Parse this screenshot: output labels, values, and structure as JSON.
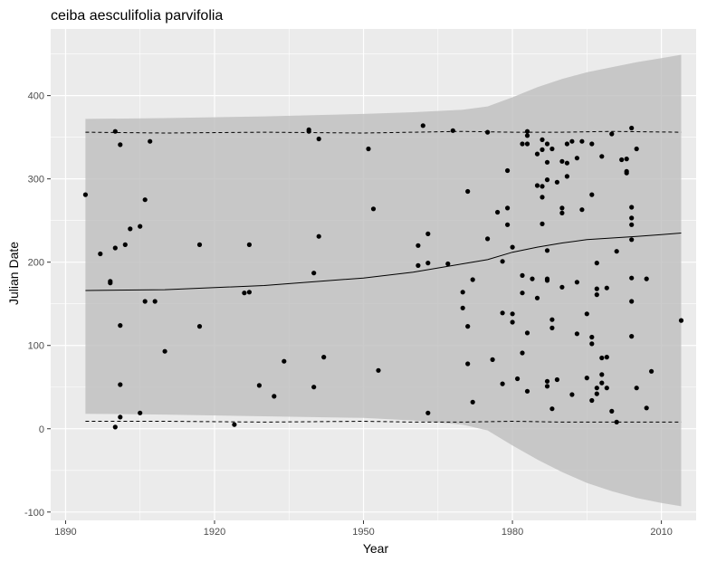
{
  "chart_data": {
    "type": "scatter",
    "title": "ceiba aesculifolia parvifolia",
    "xlabel": "Year",
    "ylabel": "Julian Date",
    "xlim": [
      1887,
      2017
    ],
    "ylim": [
      -110,
      480
    ],
    "xticks": [
      1890,
      1920,
      1950,
      1980,
      2010
    ],
    "yticks": [
      -100,
      0,
      100,
      200,
      300,
      400
    ],
    "grid": true,
    "colors": {
      "panel": "#ebebeb",
      "grid_major": "#ffffff",
      "ribbon": "#bebebe",
      "points": "#000000",
      "lines": "#000000"
    },
    "band": {
      "x": [
        1894,
        1910,
        1930,
        1950,
        1960,
        1970,
        1975,
        1980,
        1985,
        1990,
        1995,
        2000,
        2005,
        2010,
        2014
      ],
      "upper": [
        372,
        373,
        375,
        378,
        380,
        383,
        387,
        398,
        410,
        420,
        428,
        434,
        440,
        445,
        449
      ],
      "lower": [
        18,
        17,
        15,
        13,
        10,
        5,
        -2,
        -20,
        -37,
        -52,
        -65,
        -75,
        -83,
        -89,
        -93
      ]
    },
    "fit": {
      "x": [
        1894,
        1910,
        1930,
        1950,
        1960,
        1970,
        1975,
        1980,
        1985,
        1990,
        1995,
        2000,
        2005,
        2010,
        2014
      ],
      "y": [
        166,
        167,
        172,
        181,
        188,
        198,
        203,
        212,
        218,
        223,
        227,
        229,
        231,
        233,
        235
      ]
    },
    "upper_dashed": {
      "x": [
        1894,
        1910,
        1930,
        1950,
        1960,
        1970,
        1980,
        1990,
        2000,
        2014
      ],
      "y": [
        356,
        355,
        356,
        355,
        356,
        357,
        356,
        356,
        357,
        356
      ]
    },
    "lower_dashed": {
      "x": [
        1894,
        1910,
        1930,
        1950,
        1960,
        1970,
        1980,
        1990,
        2000,
        2014
      ],
      "y": [
        9,
        9,
        8,
        9,
        8,
        8,
        9,
        8,
        8,
        8
      ]
    },
    "points": [
      [
        1894,
        281
      ],
      [
        1897,
        210
      ],
      [
        1899,
        177
      ],
      [
        1899,
        175
      ],
      [
        1900,
        357
      ],
      [
        1900,
        217
      ],
      [
        1900,
        2
      ],
      [
        1901,
        341
      ],
      [
        1901,
        124
      ],
      [
        1901,
        53
      ],
      [
        1901,
        14
      ],
      [
        1902,
        221
      ],
      [
        1903,
        240
      ],
      [
        1905,
        243
      ],
      [
        1905,
        19
      ],
      [
        1906,
        275
      ],
      [
        1906,
        153
      ],
      [
        1907,
        345
      ],
      [
        1908,
        153
      ],
      [
        1910,
        93
      ],
      [
        1917,
        221
      ],
      [
        1917,
        123
      ],
      [
        1924,
        5
      ],
      [
        1926,
        163
      ],
      [
        1927,
        221
      ],
      [
        1927,
        164
      ],
      [
        1929,
        52
      ],
      [
        1932,
        39
      ],
      [
        1934,
        81
      ],
      [
        1939,
        359
      ],
      [
        1939,
        357
      ],
      [
        1940,
        187
      ],
      [
        1940,
        50
      ],
      [
        1941,
        348
      ],
      [
        1941,
        231
      ],
      [
        1942,
        86
      ],
      [
        1951,
        336
      ],
      [
        1952,
        264
      ],
      [
        1953,
        70
      ],
      [
        1961,
        220
      ],
      [
        1961,
        196
      ],
      [
        1962,
        364
      ],
      [
        1963,
        234
      ],
      [
        1963,
        199
      ],
      [
        1963,
        19
      ],
      [
        1967,
        198
      ],
      [
        1968,
        358
      ],
      [
        1970,
        164
      ],
      [
        1970,
        145
      ],
      [
        1971,
        285
      ],
      [
        1971,
        123
      ],
      [
        1971,
        78
      ],
      [
        1972,
        179
      ],
      [
        1972,
        32
      ],
      [
        1975,
        356
      ],
      [
        1975,
        228
      ],
      [
        1976,
        83
      ],
      [
        1977,
        260
      ],
      [
        1978,
        201
      ],
      [
        1978,
        139
      ],
      [
        1978,
        54
      ],
      [
        1979,
        310
      ],
      [
        1979,
        265
      ],
      [
        1979,
        245
      ],
      [
        1980,
        218
      ],
      [
        1980,
        138
      ],
      [
        1980,
        128
      ],
      [
        1981,
        60
      ],
      [
        1982,
        342
      ],
      [
        1982,
        184
      ],
      [
        1982,
        163
      ],
      [
        1982,
        91
      ],
      [
        1983,
        357
      ],
      [
        1983,
        352
      ],
      [
        1983,
        342
      ],
      [
        1983,
        115
      ],
      [
        1983,
        45
      ],
      [
        1984,
        180
      ],
      [
        1985,
        330
      ],
      [
        1985,
        292
      ],
      [
        1985,
        157
      ],
      [
        1986,
        347
      ],
      [
        1986,
        335
      ],
      [
        1986,
        278
      ],
      [
        1986,
        246
      ],
      [
        1986,
        291
      ],
      [
        1987,
        342
      ],
      [
        1987,
        320
      ],
      [
        1987,
        299
      ],
      [
        1987,
        214
      ],
      [
        1987,
        180
      ],
      [
        1987,
        178
      ],
      [
        1987,
        57
      ],
      [
        1987,
        51
      ],
      [
        1988,
        336
      ],
      [
        1988,
        131
      ],
      [
        1988,
        121
      ],
      [
        1988,
        24
      ],
      [
        1989,
        296
      ],
      [
        1989,
        59
      ],
      [
        1990,
        321
      ],
      [
        1990,
        265
      ],
      [
        1990,
        259
      ],
      [
        1990,
        170
      ],
      [
        1991,
        342
      ],
      [
        1991,
        319
      ],
      [
        1991,
        303
      ],
      [
        1992,
        345
      ],
      [
        1992,
        41
      ],
      [
        1993,
        325
      ],
      [
        1993,
        176
      ],
      [
        1993,
        114
      ],
      [
        1994,
        345
      ],
      [
        1994,
        263
      ],
      [
        1995,
        138
      ],
      [
        1995,
        61
      ],
      [
        1996,
        342
      ],
      [
        1996,
        281
      ],
      [
        1996,
        110
      ],
      [
        1996,
        102
      ],
      [
        1996,
        34
      ],
      [
        1997,
        199
      ],
      [
        1997,
        168
      ],
      [
        1997,
        161
      ],
      [
        1997,
        49
      ],
      [
        1997,
        42
      ],
      [
        1998,
        327
      ],
      [
        1998,
        65
      ],
      [
        1998,
        55
      ],
      [
        1998,
        85
      ],
      [
        1999,
        169
      ],
      [
        1999,
        86
      ],
      [
        1999,
        49
      ],
      [
        2000,
        354
      ],
      [
        2000,
        21
      ],
      [
        2001,
        213
      ],
      [
        2001,
        8
      ],
      [
        2002,
        323
      ],
      [
        2003,
        324
      ],
      [
        2003,
        307
      ],
      [
        2003,
        309
      ],
      [
        2004,
        361
      ],
      [
        2004,
        266
      ],
      [
        2004,
        253
      ],
      [
        2004,
        245
      ],
      [
        2004,
        227
      ],
      [
        2004,
        181
      ],
      [
        2004,
        153
      ],
      [
        2004,
        111
      ],
      [
        2005,
        336
      ],
      [
        2005,
        49
      ],
      [
        2007,
        180
      ],
      [
        2007,
        25
      ],
      [
        2008,
        69
      ],
      [
        2014,
        130
      ]
    ]
  }
}
